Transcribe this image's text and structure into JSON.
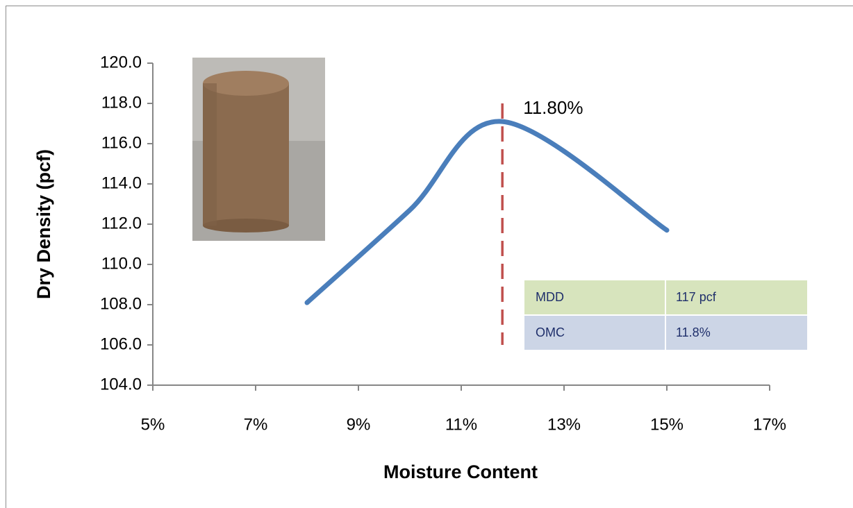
{
  "chart_data": {
    "type": "line",
    "x_label": "Moisture Content",
    "y_label": "Dry Density  (pcf)",
    "x": [
      8,
      10,
      11.8,
      15
    ],
    "series": [
      {
        "name": "Dry Density",
        "color": "#4a7ebb",
        "values": [
          108.1,
          112.7,
          117.1,
          111.7
        ]
      }
    ],
    "xlim": [
      5,
      17
    ],
    "xticks": [
      {
        "value": 5,
        "label": "5%"
      },
      {
        "value": 7,
        "label": "7%"
      },
      {
        "value": 9,
        "label": "9%"
      },
      {
        "value": 11,
        "label": "11%"
      },
      {
        "value": 13,
        "label": "13%"
      },
      {
        "value": 15,
        "label": "15%"
      },
      {
        "value": 17,
        "label": "17%"
      }
    ],
    "ylim": [
      104,
      120
    ],
    "yticks": [
      {
        "value": 104,
        "label": "104.0"
      },
      {
        "value": 106,
        "label": "106.0"
      },
      {
        "value": 108,
        "label": "108.0"
      },
      {
        "value": 110,
        "label": "110.0"
      },
      {
        "value": 112,
        "label": "112.0"
      },
      {
        "value": 114,
        "label": "114.0"
      },
      {
        "value": 116,
        "label": "116.0"
      },
      {
        "value": 118,
        "label": "118.0"
      },
      {
        "value": 120,
        "label": "120.0"
      }
    ],
    "vline": {
      "x": 11.8,
      "y": [
        106,
        118
      ],
      "label": "11.80%",
      "color": "#c0504d"
    },
    "table": {
      "rows": [
        [
          "MDD",
          "117 pcf"
        ],
        [
          "OMC",
          "11.8%"
        ]
      ],
      "colors": [
        "#d7e4bd",
        "#ccd5e6"
      ]
    }
  }
}
